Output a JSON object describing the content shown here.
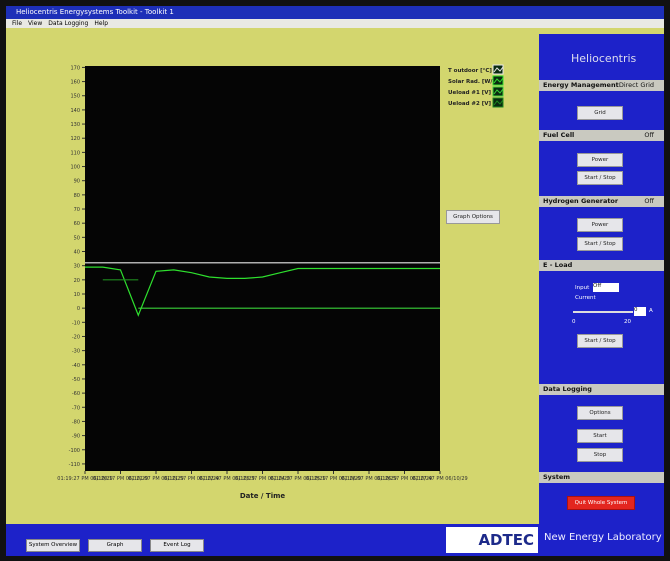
{
  "window": {
    "title": "Heliocentris Energysystems Toolkit - Toolkit 1",
    "menu": [
      "File",
      "View",
      "Data Logging",
      "Help"
    ]
  },
  "chart_data": {
    "type": "line",
    "x_label": "Date / Time",
    "categories": [
      "01:19:27 PM 06/10/29",
      null,
      "01:20:17 PM 06/10/29",
      null,
      "01:21:07 PM 06/10/29",
      null,
      "01:21:57 PM 06/10/29",
      null,
      "01:22:47 PM 06/10/29",
      null,
      "01:23:37 PM 06/10/29",
      null,
      "01:24:27 PM 06/10/29",
      null,
      "01:25:17 PM 06/10/29",
      null,
      "01:26:07 PM 06/10/29",
      null,
      "01:26:57 PM 06/10/29",
      null,
      "01:27:47 PM 06/10/29"
    ],
    "series": [
      {
        "name": "T outdoor [°C]",
        "color": "#e8e8e8",
        "values": [
          32,
          32,
          32,
          32,
          32,
          32,
          32,
          32,
          32,
          32,
          32,
          32,
          32,
          32,
          32,
          32,
          32,
          32,
          32,
          32,
          32
        ]
      },
      {
        "name": "Solar Rad. [W/m²]",
        "color": "#2ee02e",
        "values": [
          29,
          29,
          27,
          -5,
          26,
          27,
          25,
          22,
          21,
          21,
          22,
          25,
          28,
          28,
          28,
          28,
          28,
          28,
          28,
          28,
          28
        ]
      },
      {
        "name": "Ueload #1 [V]",
        "color": "#3ad23a",
        "values": [
          null,
          null,
          null,
          0,
          0,
          0,
          0,
          0,
          0,
          0,
          0,
          0,
          0,
          0,
          0,
          0,
          0,
          0,
          0,
          0,
          0
        ]
      },
      {
        "name": "Ueload #2 [V]",
        "color": "#1f8a1f",
        "values": [
          null,
          20,
          20,
          20,
          null,
          null,
          null,
          null,
          null,
          null,
          null,
          null,
          null,
          null,
          null,
          null,
          null,
          null,
          null,
          null,
          null
        ]
      }
    ],
    "ylim": [
      -115,
      171
    ],
    "yticks": [
      -110,
      -100,
      -90,
      -80,
      -70,
      -60,
      -50,
      -40,
      -30,
      -20,
      -10,
      0,
      10,
      20,
      30,
      40,
      50,
      60,
      70,
      80,
      90,
      100,
      110,
      120,
      130,
      140,
      150,
      160,
      170
    ],
    "graph_options": "Graph Options"
  },
  "panel": {
    "brand": "Heliocentris",
    "energy": {
      "title": "Energy Management",
      "status": "Direct Grid",
      "button": "Grid"
    },
    "fuel_cell": {
      "title": "Fuel Cell",
      "status": "Off",
      "buttons": [
        "Power",
        "Start / Stop"
      ]
    },
    "hydrogen": {
      "title": "Hydrogen Generator",
      "status": "Off",
      "buttons": [
        "Power",
        "Start / Stop"
      ]
    },
    "eload": {
      "title": "E - Load",
      "input_label": "Input",
      "input_value": "Off",
      "current_label": "Current",
      "min": "0",
      "max": "20",
      "value": "0",
      "unit": "A",
      "button": "Start / Stop"
    },
    "logging": {
      "title": "Data Logging",
      "buttons": [
        "Options",
        "Start",
        "Stop"
      ]
    },
    "system": {
      "title": "System",
      "button": "Quit Whole System"
    }
  },
  "footer": {
    "tabs": [
      "System Overview",
      "Graph",
      "Event Log"
    ],
    "logo": "ADTEC",
    "lab": "New Energy Laboratory"
  }
}
